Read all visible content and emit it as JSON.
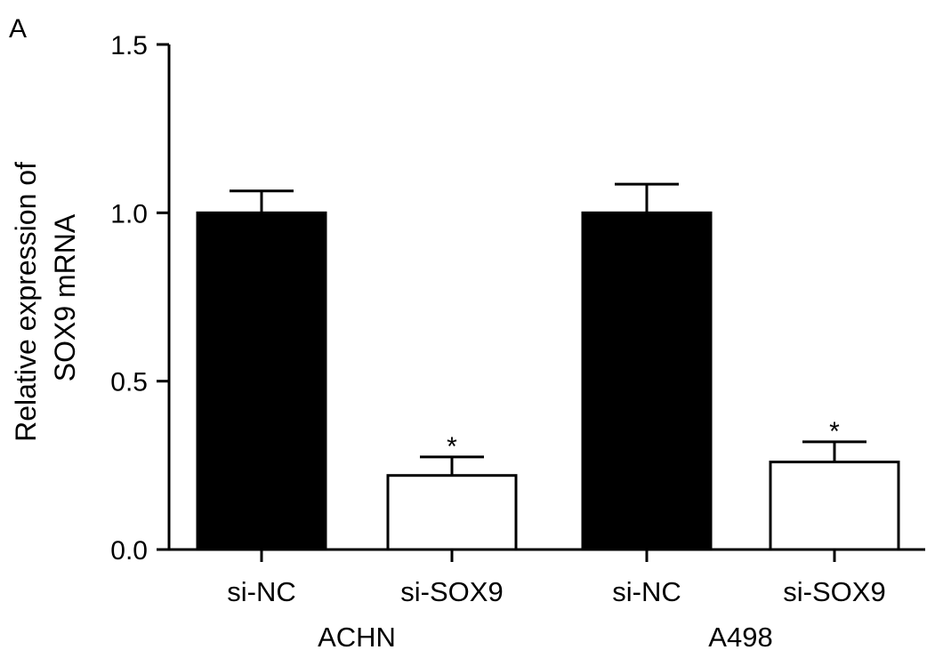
{
  "panel_label": "A",
  "chart_data": {
    "type": "bar",
    "title": "",
    "ylabel_lines": [
      "Relative expression of",
      "SOX9 mRNA"
    ],
    "ylim": [
      0,
      1.5
    ],
    "yticks": [
      0.0,
      0.5,
      1.0,
      1.5
    ],
    "ytick_labels": [
      "0.0",
      "0.5",
      "1.0",
      "1.5"
    ],
    "grid": false,
    "categories": [
      "si-NC",
      "si-SOX9",
      "si-NC",
      "si-SOX9"
    ],
    "groups": [
      {
        "label": "ACHN",
        "categories": [
          0,
          1
        ]
      },
      {
        "label": "A498",
        "categories": [
          2,
          3
        ]
      }
    ],
    "values": [
      1.0,
      0.22,
      1.0,
      0.26
    ],
    "errors": [
      0.065,
      0.055,
      0.085,
      0.06
    ],
    "fills": [
      "#000000",
      "#ffffff",
      "#000000",
      "#ffffff"
    ],
    "annotations": [
      "",
      "*",
      "",
      "*"
    ]
  }
}
